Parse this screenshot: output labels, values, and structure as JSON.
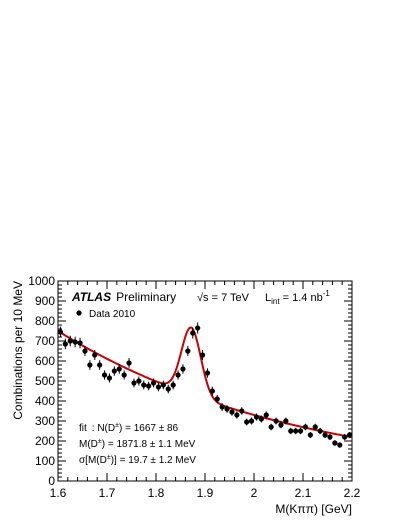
{
  "chart_data": {
    "type": "scatter",
    "title": "",
    "xlabel": "M(Kππ) [GeV]",
    "ylabel": "Combinations per 10 MeV",
    "xlim": [
      1.6,
      2.2
    ],
    "ylim": [
      0,
      1000
    ],
    "x_ticks": [
      "1.6",
      "1.7",
      "1.8",
      "1.9",
      "2",
      "2.1",
      "2.2"
    ],
    "y_ticks": [
      "0",
      "100",
      "200",
      "300",
      "400",
      "500",
      "600",
      "700",
      "800",
      "900",
      "1000"
    ],
    "grid": false,
    "series": [
      {
        "name": "Data 2010",
        "marker": "filled-circle",
        "x": [
          1.605,
          1.615,
          1.625,
          1.635,
          1.645,
          1.655,
          1.665,
          1.675,
          1.685,
          1.695,
          1.705,
          1.715,
          1.725,
          1.735,
          1.745,
          1.755,
          1.765,
          1.775,
          1.785,
          1.795,
          1.805,
          1.815,
          1.825,
          1.835,
          1.845,
          1.855,
          1.865,
          1.875,
          1.885,
          1.895,
          1.905,
          1.915,
          1.925,
          1.935,
          1.945,
          1.955,
          1.965,
          1.975,
          1.985,
          1.995,
          2.005,
          2.015,
          2.025,
          2.035,
          2.045,
          2.055,
          2.065,
          2.075,
          2.085,
          2.095,
          2.105,
          2.115,
          2.125,
          2.135,
          2.145,
          2.155,
          2.165,
          2.175,
          2.185,
          2.195
        ],
        "y": [
          745,
          685,
          700,
          695,
          690,
          650,
          580,
          630,
          580,
          530,
          515,
          550,
          560,
          530,
          590,
          490,
          500,
          480,
          475,
          490,
          470,
          480,
          460,
          480,
          530,
          560,
          650,
          740,
          765,
          630,
          540,
          450,
          410,
          370,
          360,
          345,
          330,
          350,
          295,
          300,
          320,
          310,
          330,
          270,
          300,
          280,
          300,
          250,
          250,
          250,
          270,
          230,
          270,
          250,
          230,
          220,
          190,
          180,
          220,
          230
        ]
      },
      {
        "name": "fit",
        "style": "line",
        "color": "#cc0000"
      }
    ],
    "annotations": {
      "atlas": "ATLAS",
      "preliminary": "Preliminary",
      "energy": "√s = 7 TeV",
      "lumi_label": "L",
      "lumi_sub": "int",
      "lumi_value": " = 1.4 nb",
      "lumi_exp": "-1",
      "legend_data": "Data 2010",
      "fit_prefix": "fit",
      "fit_line1": ": N(D",
      "fit_line1_sup": "±",
      "fit_line1_end": ") = 1667 ± 86",
      "fit_line2": "M(D",
      "fit_line2_sup": "±",
      "fit_line2_end": ") = 1871.8 ± 1.1 MeV",
      "fit_line3": "σ[M(D",
      "fit_line3_sup": "±",
      "fit_line3_end": ")] = 19.7 ± 1.2 MeV"
    },
    "fit_model": {
      "signal_yield": 1667,
      "mean_GeV": 1.8718,
      "sigma_GeV": 0.0197,
      "background": "exponential"
    }
  }
}
